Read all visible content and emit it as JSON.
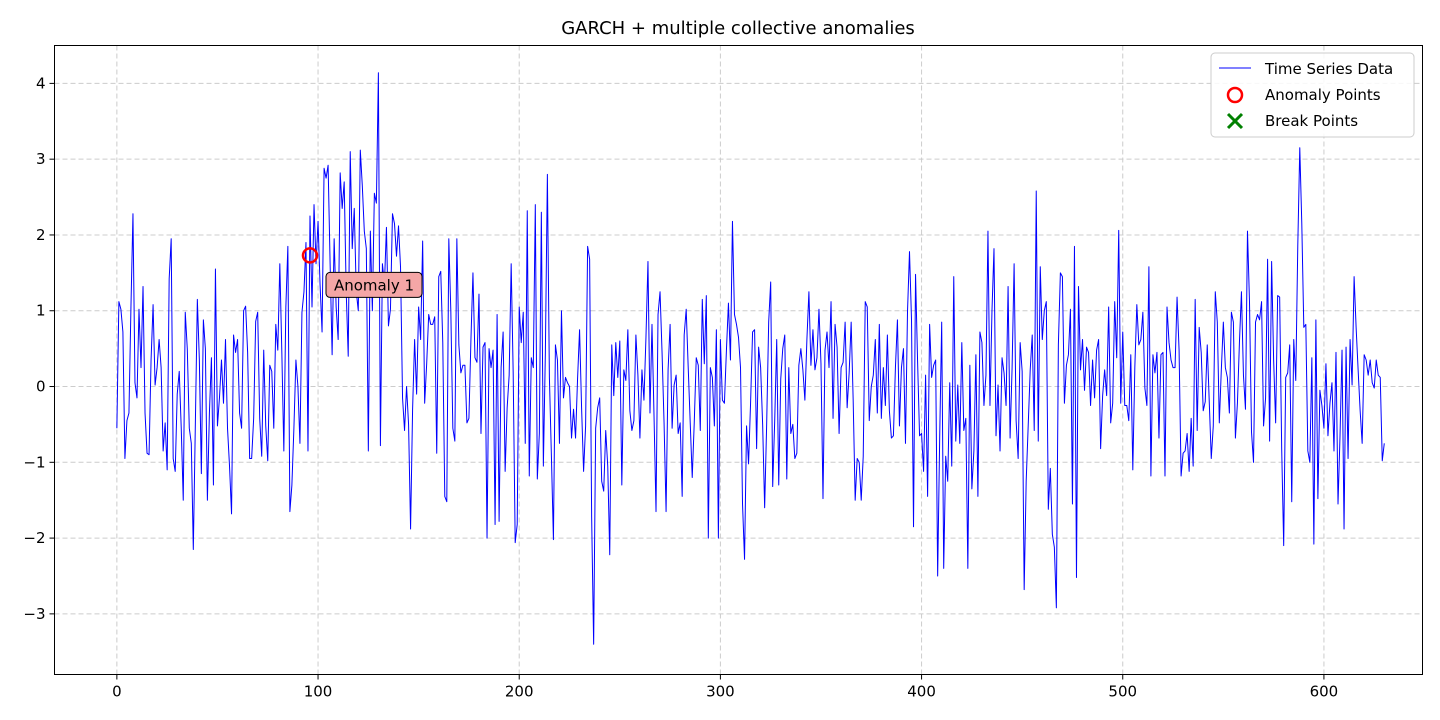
{
  "chart_data": {
    "type": "line",
    "title": "GARCH + multiple collective anomalies",
    "xlabel": "",
    "ylabel": "",
    "xlim": [
      -31,
      649
    ],
    "ylim": [
      -3.8,
      4.5
    ],
    "xticks": [
      0,
      100,
      200,
      300,
      400,
      500,
      600
    ],
    "yticks": [
      -3,
      -2,
      -1,
      0,
      1,
      2,
      3,
      4
    ],
    "grid": true,
    "legend_position": "top-right",
    "series": [
      {
        "name": "Time Series Data",
        "color": "#0000ff",
        "x_start": 0,
        "x_step": 1,
        "values": [
          -0.55,
          1.12,
          1.02,
          0.72,
          -0.95,
          -0.45,
          -0.35,
          1.05,
          2.28,
          0.05,
          -0.15,
          1.02,
          0.25,
          1.32,
          -0.35,
          -0.88,
          -0.9,
          0.35,
          1.08,
          0.02,
          0.25,
          0.62,
          0.25,
          -0.85,
          -0.48,
          -1.1,
          1.42,
          1.95,
          -0.95,
          -1.12,
          -0.1,
          0.2,
          -0.55,
          -1.5,
          0.98,
          0.5,
          -0.55,
          -0.75,
          -2.15,
          -0.52,
          1.15,
          0.35,
          -1.15,
          0.88,
          0.5,
          -1.5,
          -0.35,
          0.38,
          -1.3,
          1.55,
          -0.52,
          -0.15,
          0.35,
          -0.22,
          0.62,
          -0.55,
          -1.05,
          -1.68,
          0.68,
          0.45,
          0.62,
          -0.35,
          -0.55,
          1.0,
          1.06,
          0.45,
          -0.95,
          -0.95,
          -0.42,
          0.86,
          0.98,
          -0.42,
          -0.92,
          0.48,
          -0.52,
          -0.98,
          0.28,
          0.2,
          -0.55,
          0.82,
          0.48,
          1.62,
          0.45,
          -0.85,
          1.05,
          1.85,
          -1.65,
          -1.3,
          -0.55,
          0.35,
          0.0,
          -0.75,
          0.98,
          1.25,
          1.9,
          -0.85,
          2.25,
          1.05,
          2.4,
          1.62,
          2.18,
          1.35,
          0.72,
          2.88,
          2.75,
          2.92,
          1.62,
          0.42,
          1.95,
          1.05,
          0.62,
          2.82,
          2.35,
          2.7,
          1.25,
          0.4,
          3.1,
          1.82,
          2.35,
          1.25,
          1.0,
          3.12,
          2.65,
          2.05,
          1.82,
          -0.85,
          2.05,
          1.0,
          2.55,
          2.42,
          4.14,
          -0.78,
          1.62,
          1.35,
          2.1,
          0.8,
          1.02,
          2.28,
          2.15,
          1.72,
          2.12,
          1.58,
          -0.15,
          -0.58,
          0.0,
          -0.5,
          -1.88,
          -0.3,
          0.62,
          -0.1,
          1.05,
          0.62,
          1.92,
          -0.22,
          0.3,
          0.95,
          0.82,
          0.82,
          0.92,
          -0.88,
          1.45,
          1.52,
          0.58,
          -1.45,
          -1.52,
          1.95,
          1.0,
          -0.55,
          -0.72,
          1.95,
          0.55,
          0.18,
          0.28,
          0.28,
          -0.48,
          -0.42,
          0.62,
          1.5,
          0.38,
          0.32,
          1.22,
          -0.62,
          0.52,
          0.58,
          -2.0,
          0.5,
          0.25,
          0.48,
          -1.82,
          0.95,
          -1.78,
          0.25,
          0.72,
          -1.12,
          -0.28,
          0.15,
          1.62,
          0.18,
          -2.06,
          -1.82,
          1.05,
          0.58,
          0.98,
          -0.75,
          2.32,
          -1.18,
          0.38,
          0.25,
          2.4,
          -1.22,
          -0.62,
          2.3,
          -1.05,
          0.45,
          2.8,
          0.12,
          -0.92,
          -2.02,
          0.55,
          0.35,
          -0.75,
          1.0,
          -0.15,
          0.12,
          0.05,
          0.0,
          -0.68,
          -0.3,
          -0.68,
          0.1,
          0.75,
          -0.28,
          -1.12,
          -0.52,
          1.85,
          1.68,
          -1.72,
          -3.4,
          -0.55,
          -0.28,
          -0.15,
          -1.25,
          -1.38,
          -0.58,
          -1.05,
          -2.22,
          0.55,
          -0.12,
          0.58,
          0.12,
          0.6,
          -1.3,
          0.22,
          0.08,
          0.75,
          -0.32,
          -0.58,
          -0.45,
          0.68,
          0.15,
          -0.68,
          0.22,
          -0.18,
          0.65,
          1.65,
          -0.35,
          0.82,
          -0.38,
          -1.65,
          0.95,
          1.25,
          0.45,
          -0.48,
          -1.65,
          0.22,
          0.82,
          -0.55,
          0.02,
          0.15,
          -0.62,
          -0.48,
          -1.45,
          0.68,
          1.02,
          0.25,
          -0.48,
          -1.2,
          -0.48,
          0.38,
          0.28,
          -0.58,
          1.15,
          0.3,
          1.2,
          -2.0,
          0.25,
          0.12,
          -0.52,
          0.75,
          -2.0,
          0.62,
          -0.18,
          -0.22,
          0.48,
          1.1,
          0.35,
          2.18,
          0.95,
          0.82,
          0.65,
          0.25,
          -1.55,
          -2.28,
          -0.52,
          -1.02,
          -0.22,
          0.72,
          0.75,
          -0.82,
          0.52,
          0.25,
          -0.5,
          -1.6,
          -0.5,
          0.85,
          1.38,
          -1.32,
          -0.45,
          0.62,
          -1.3,
          0.1,
          0.5,
          0.68,
          -1.22,
          0.25,
          -0.62,
          -0.5,
          -0.95,
          -0.88,
          0.28,
          0.5,
          0.22,
          -0.18,
          0.62,
          1.25,
          0.28,
          0.75,
          0.22,
          0.38,
          1.02,
          0.3,
          -1.48,
          0.48,
          0.72,
          0.25,
          1.12,
          -0.42,
          0.82,
          0.52,
          -0.62,
          0.25,
          0.32,
          0.85,
          -0.28,
          0.18,
          0.85,
          -0.18,
          -1.5,
          -0.95,
          -1.0,
          -1.5,
          -0.92,
          1.12,
          1.05,
          -0.45,
          0.0,
          0.15,
          0.62,
          -0.35,
          0.82,
          -0.42,
          0.25,
          -0.25,
          0.68,
          -0.32,
          -0.68,
          -0.65,
          0.25,
          0.88,
          -0.52,
          0.25,
          0.5,
          -0.75,
          0.98,
          1.78,
          0.88,
          -1.85,
          1.48,
          0.35,
          -0.65,
          -0.62,
          -1.12,
          0.15,
          -1.45,
          0.82,
          0.12,
          0.28,
          0.35,
          -2.5,
          -0.68,
          0.85,
          -2.4,
          -0.92,
          -1.25,
          0.05,
          -1.05,
          1.45,
          -0.72,
          0.02,
          -0.75,
          0.58,
          -0.58,
          -0.42,
          -2.4,
          0.28,
          -1.35,
          -0.85,
          0.42,
          -1.45,
          0.72,
          0.58,
          -0.25,
          0.15,
          2.05,
          -0.25,
          1.0,
          1.82,
          -0.65,
          0.02,
          -0.85,
          0.38,
          0.18,
          -0.25,
          1.32,
          -0.68,
          0.25,
          1.62,
          -0.45,
          -0.95,
          0.58,
          0.2,
          -2.68,
          -1.25,
          -0.52,
          0.22,
          0.68,
          -0.58,
          2.58,
          -0.72,
          1.58,
          0.62,
          1.0,
          1.12,
          -1.62,
          -1.08,
          -1.95,
          -2.12,
          -2.92,
          0.55,
          1.5,
          1.45,
          -0.22,
          0.28,
          0.42,
          1.02,
          -1.55,
          1.85,
          -2.52,
          1.32,
          0.22,
          0.62,
          -0.05,
          0.52,
          0.45,
          -0.25,
          0.35,
          -0.15,
          0.48,
          0.62,
          -0.82,
          -0.12,
          0.22,
          -0.12,
          1.05,
          -0.48,
          -0.22,
          1.12,
          0.38,
          2.06,
          -0.22,
          0.72,
          -0.25,
          -0.25,
          -0.45,
          0.42,
          -1.1,
          0.25,
          1.08,
          0.55,
          0.62,
          0.98,
          -0.02,
          -0.25,
          1.58,
          -1.18,
          0.42,
          0.18,
          0.45,
          -0.68,
          0.42,
          0.45,
          -1.18,
          1.05,
          0.58,
          0.35,
          0.25,
          0.25,
          1.18,
          0.48,
          -1.18,
          -0.88,
          -0.85,
          -0.62,
          -1.12,
          -0.42,
          -1.05,
          1.15,
          -0.58,
          0.78,
          0.45,
          -0.32,
          -0.2,
          0.55,
          -0.2,
          -0.95,
          -0.52,
          1.25,
          0.85,
          -0.48,
          0.22,
          0.85,
          0.25,
          0.12,
          -0.35,
          0.98,
          0.85,
          -0.68,
          -0.22,
          0.58,
          1.25,
          0.15,
          -0.3,
          2.05,
          1.12,
          -0.6,
          -1.0,
          0.85,
          0.95,
          0.88,
          1.12,
          -0.52,
          -0.15,
          1.68,
          -0.72,
          1.65,
          0.35,
          -0.48,
          1.2,
          1.18,
          -0.82,
          -2.1,
          0.12,
          0.18,
          0.55,
          -1.52,
          0.62,
          0.08,
          1.85,
          3.15,
          2.15,
          0.78,
          0.82,
          -0.85,
          -1.0,
          0.38,
          -2.08,
          0.88,
          -1.48,
          -0.05,
          -0.25,
          -0.55,
          0.3,
          -0.65,
          -0.22,
          0.05,
          -0.85,
          0.45,
          -1.55,
          -0.65,
          0.48,
          -1.88,
          0.52,
          -0.95,
          0.62,
          0.02,
          1.45,
          0.78,
          0.22,
          -0.32,
          -0.75,
          0.42,
          0.35,
          0.15,
          0.35,
          0.05,
          -0.02,
          0.35,
          0.15,
          0.12,
          -0.98,
          -0.75
        ]
      },
      {
        "name": "Anomaly Points",
        "color": "#ff0000",
        "points": [
          {
            "x": 96,
            "y": 1.73
          }
        ]
      },
      {
        "name": "Break Points",
        "color": "#008000",
        "points": []
      }
    ],
    "annotations": [
      {
        "text": "Anomaly 1",
        "x": 96,
        "y": 1.73,
        "bg_color": "#f4a6a6"
      }
    ]
  }
}
